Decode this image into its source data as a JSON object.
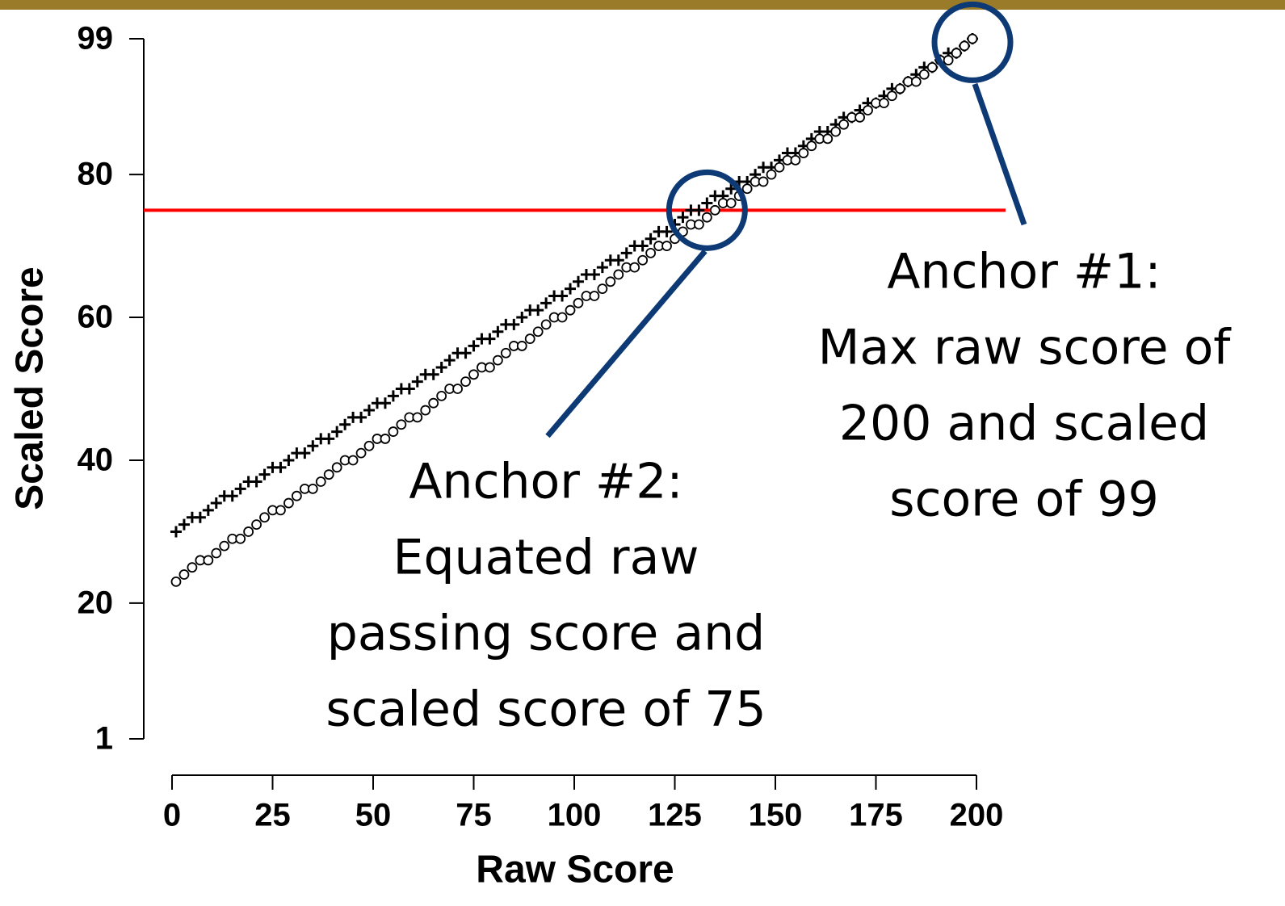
{
  "chart_data": {
    "type": "scatter",
    "xlabel": "Raw Score",
    "ylabel": "Scaled Score",
    "xlim": [
      0,
      200
    ],
    "xticks": [
      0,
      25,
      50,
      75,
      100,
      125,
      150,
      175,
      200
    ],
    "ylim": [
      1,
      99
    ],
    "yticks": [
      1,
      20,
      40,
      60,
      80,
      99
    ],
    "x": [
      1,
      3,
      5,
      7,
      9,
      11,
      13,
      15,
      17,
      19,
      21,
      23,
      25,
      27,
      29,
      31,
      33,
      35,
      37,
      39,
      41,
      43,
      45,
      47,
      49,
      51,
      53,
      55,
      57,
      59,
      61,
      63,
      65,
      67,
      69,
      71,
      73,
      75,
      77,
      79,
      81,
      83,
      85,
      87,
      89,
      91,
      93,
      95,
      97,
      99,
      101,
      103,
      105,
      107,
      109,
      111,
      113,
      115,
      117,
      119,
      121,
      123,
      125,
      127,
      129,
      131,
      133,
      135,
      137,
      139,
      141,
      143,
      145,
      147,
      149,
      151,
      153,
      155,
      157,
      159,
      161,
      163,
      165,
      167,
      169,
      171,
      173,
      175,
      177,
      179,
      181,
      183,
      185,
      187,
      189,
      191,
      193,
      195,
      197,
      199
    ],
    "series": [
      {
        "marker": "plus",
        "color": "#000000",
        "values": [
          30,
          31,
          32,
          32,
          33,
          34,
          35,
          35,
          36,
          37,
          37,
          38,
          39,
          39,
          40,
          41,
          41,
          42,
          43,
          43,
          44,
          45,
          46,
          46,
          47,
          48,
          48,
          49,
          50,
          50,
          51,
          52,
          52,
          53,
          54,
          55,
          55,
          56,
          57,
          57,
          58,
          59,
          59,
          60,
          61,
          61,
          62,
          63,
          63,
          64,
          65,
          66,
          66,
          67,
          68,
          68,
          69,
          70,
          70,
          71,
          72,
          72,
          73,
          74,
          75,
          75,
          76,
          77,
          77,
          78,
          79,
          79,
          80,
          81,
          81,
          82,
          83,
          83,
          84,
          85,
          86,
          86,
          87,
          88,
          88,
          89,
          90,
          90,
          91,
          92,
          92,
          93,
          94,
          95,
          95,
          96,
          97,
          97,
          98,
          99
        ]
      },
      {
        "marker": "circle",
        "color": "#000000",
        "values": [
          23,
          24,
          25,
          26,
          26,
          27,
          28,
          29,
          29,
          30,
          31,
          32,
          33,
          33,
          34,
          35,
          36,
          36,
          37,
          38,
          39,
          40,
          40,
          41,
          42,
          43,
          43,
          44,
          45,
          46,
          46,
          47,
          48,
          49,
          50,
          50,
          51,
          52,
          53,
          53,
          54,
          55,
          56,
          56,
          57,
          58,
          59,
          60,
          60,
          61,
          62,
          63,
          63,
          64,
          65,
          66,
          67,
          67,
          68,
          69,
          70,
          70,
          71,
          72,
          73,
          73,
          74,
          75,
          76,
          76,
          77,
          78,
          79,
          79,
          80,
          81,
          82,
          82,
          83,
          84,
          85,
          85,
          86,
          87,
          88,
          88,
          89,
          90,
          90,
          91,
          92,
          93,
          93,
          94,
          95,
          96,
          96,
          97,
          98,
          99
        ]
      }
    ],
    "reference_line": {
      "y": 75,
      "color": "#ff0000"
    },
    "annotations": [
      {
        "lines": [
          "Anchor #2:",
          "Equated raw",
          "passing score and",
          "scaled score of 75"
        ],
        "x": 133,
        "y": 75
      },
      {
        "lines": [
          "Anchor #1:",
          "Max raw score of",
          "200 and scaled",
          "score of 99"
        ],
        "x": 199,
        "y": 98.5
      }
    ]
  }
}
